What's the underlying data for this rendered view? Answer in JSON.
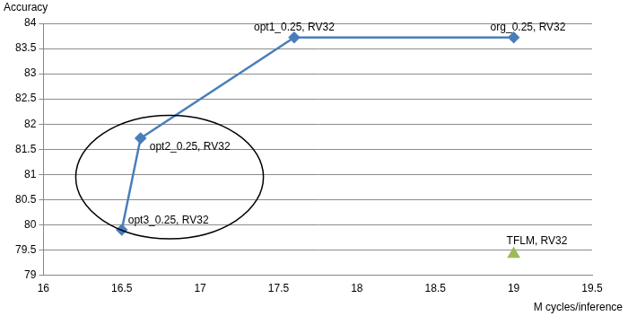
{
  "chart_data": {
    "type": "scatter",
    "x_label": "M cycles/inference",
    "y_label": "Accuracy",
    "xlim": [
      16,
      19.5
    ],
    "xticks": [
      16,
      16.5,
      17,
      17.5,
      18,
      18.5,
      19,
      19.5
    ],
    "ylim": [
      79,
      84
    ],
    "yticks": [
      79,
      79.5,
      80,
      80.5,
      81,
      81.5,
      82,
      82.5,
      83,
      83.5,
      84
    ],
    "grid": "y",
    "series": [
      {
        "color": "#4a7ebb",
        "marker": "diamond",
        "line_style": "solid",
        "x": [
          16.5,
          16.62,
          17.6,
          19
        ],
        "values": [
          79.9,
          81.72,
          83.72,
          83.72
        ],
        "point_labels": [
          "opt3_0.25, RV32",
          "opt2_0.25, RV32",
          "opt1_0.25, RV32",
          "org_0.25, RV32"
        ]
      },
      {
        "color": "#9bbb59",
        "marker": "triangle",
        "line_style": "none",
        "x": [
          19
        ],
        "values": [
          79.42
        ],
        "point_labels": [
          "TFLM, RV32"
        ]
      }
    ]
  }
}
